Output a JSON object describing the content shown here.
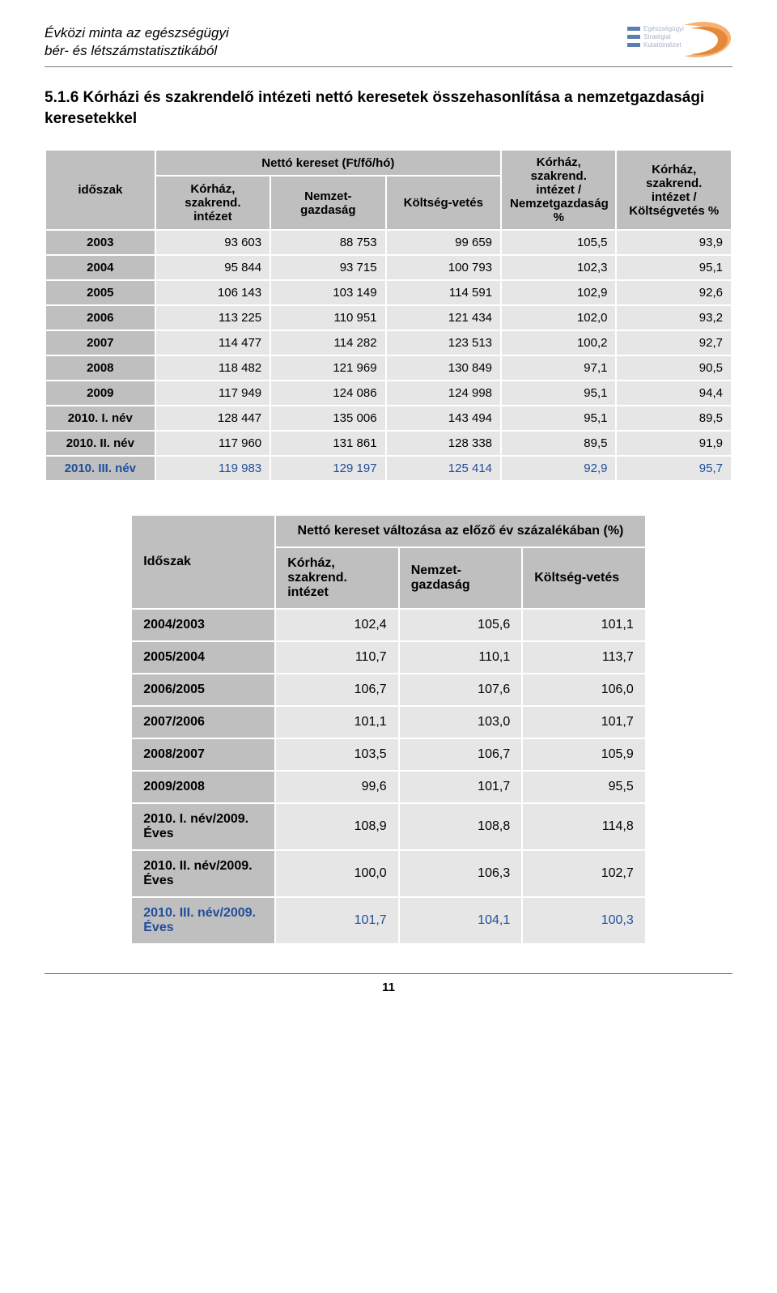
{
  "header": {
    "title_line1": "Évközi minta az egészségügyi",
    "title_line2": "bér- és létszámstatisztikából",
    "logo_text1": "Egészségügyi",
    "logo_text2": "Stratégiai",
    "logo_text3": "Kutatóintézet"
  },
  "section_title": "5.1.6 Kórházi és szakrendelő intézeti nettó keresetek összehasonlítása a nemzetgazdasági keresetekkel",
  "table1": {
    "col_idoszak": "időszak",
    "group_header": "Nettó kereset (Ft/fő/hó)",
    "col2": "Kórház, szakrend. intézet",
    "col3": "Nemzet-gazdaság",
    "col4": "Költség-vetés",
    "col5": "Kórház, szakrend. intézet / Nemzetgazdaság %",
    "col6": "Kórház, szakrend. intézet / Költségvetés %",
    "rows": [
      {
        "p": "2003",
        "v1": "93 603",
        "v2": "88 753",
        "v3": "99 659",
        "v4": "105,5",
        "v5": "93,9"
      },
      {
        "p": "2004",
        "v1": "95 844",
        "v2": "93 715",
        "v3": "100 793",
        "v4": "102,3",
        "v5": "95,1"
      },
      {
        "p": "2005",
        "v1": "106 143",
        "v2": "103 149",
        "v3": "114 591",
        "v4": "102,9",
        "v5": "92,6"
      },
      {
        "p": "2006",
        "v1": "113 225",
        "v2": "110 951",
        "v3": "121 434",
        "v4": "102,0",
        "v5": "93,2"
      },
      {
        "p": "2007",
        "v1": "114 477",
        "v2": "114 282",
        "v3": "123 513",
        "v4": "100,2",
        "v5": "92,7"
      },
      {
        "p": "2008",
        "v1": "118 482",
        "v2": "121 969",
        "v3": "130 849",
        "v4": "97,1",
        "v5": "90,5"
      },
      {
        "p": "2009",
        "v1": "117 949",
        "v2": "124 086",
        "v3": "124 998",
        "v4": "95,1",
        "v5": "94,4"
      },
      {
        "p": "2010. I. név",
        "v1": "128 447",
        "v2": "135 006",
        "v3": "143 494",
        "v4": "95,1",
        "v5": "89,5"
      },
      {
        "p": "2010. II. név",
        "v1": "117 960",
        "v2": "131 861",
        "v3": "128 338",
        "v4": "89,5",
        "v5": "91,9"
      },
      {
        "p": "2010. III. név",
        "v1": "119 983",
        "v2": "129 197",
        "v3": "125 414",
        "v4": "92,9",
        "v5": "95,7"
      }
    ]
  },
  "table2": {
    "col_idoszak": "Időszak",
    "group_header": "Nettó kereset változása az előző év százalékában (%)",
    "col2": "Kórház, szakrend. intézet",
    "col3": "Nemzet-gazdaság",
    "col4": "Költség-vetés",
    "rows": [
      {
        "p": "2004/2003",
        "v1": "102,4",
        "v2": "105,6",
        "v3": "101,1"
      },
      {
        "p": "2005/2004",
        "v1": "110,7",
        "v2": "110,1",
        "v3": "113,7"
      },
      {
        "p": "2006/2005",
        "v1": "106,7",
        "v2": "107,6",
        "v3": "106,0"
      },
      {
        "p": "2007/2006",
        "v1": "101,1",
        "v2": "103,0",
        "v3": "101,7"
      },
      {
        "p": "2008/2007",
        "v1": "103,5",
        "v2": "106,7",
        "v3": "105,9"
      },
      {
        "p": "2009/2008",
        "v1": "99,6",
        "v2": "101,7",
        "v3": "95,5"
      },
      {
        "p": "2010. I. név/2009. Éves",
        "v1": "108,9",
        "v2": "108,8",
        "v3": "114,8"
      },
      {
        "p": "2010. II. név/2009. Éves",
        "v1": "100,0",
        "v2": "106,3",
        "v3": "102,7"
      },
      {
        "p": "2010. III. név/2009. Éves",
        "v1": "101,7",
        "v2": "104,1",
        "v3": "100,3"
      }
    ]
  },
  "page_number": "11",
  "colors": {
    "header_gray": "#bfbfbf",
    "cell_gray": "#e6e6e6",
    "highlight_blue": "#1f4e9c",
    "rule_gray": "#7a7a7a",
    "logo_orange_light": "#f7b06e",
    "logo_orange_dark": "#e4893c",
    "logo_band_blue": "#5b7fb3",
    "logo_text_gray": "#a9b3c2"
  }
}
